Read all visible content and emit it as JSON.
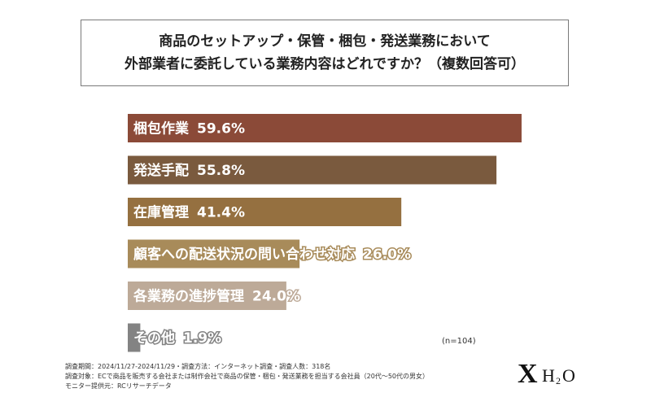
{
  "title": {
    "line1": "商品のセットアップ・保管・梱包・発送業務において",
    "line2": "外部業者に委託している業務内容はどれですか？（複数回答可）"
  },
  "chart_data": {
    "type": "bar",
    "orientation": "horizontal",
    "xlim": [
      0,
      100
    ],
    "categories": [
      "梱包作業",
      "発送手配",
      "在庫管理",
      "顧客への配送状況の問い合わせ対応",
      "各業務の進捗管理",
      "その他"
    ],
    "values": [
      59.6,
      55.8,
      41.4,
      26.0,
      24.0,
      1.9
    ],
    "value_labels": [
      "59.6%",
      "55.8%",
      "41.4%",
      "26.0%",
      "24.0%",
      "1.9%"
    ],
    "colors": [
      "#8b4a38",
      "#7a5a3e",
      "#957040",
      "#a88b5a",
      "#bdaa98",
      "#838383"
    ],
    "grid": false
  },
  "sample_note": "(n=104)",
  "footer": {
    "line1": "調査期間：2024/11/27-2024/11/29・調査方法：インターネット調査・調査人数：318名",
    "line2": "調査対象：ECで商品を販売する会社または制作会社で商品の保管・梱包・発送業務を担当する会社員（20代～50代の男女）",
    "line3": "モニター提供元：RCリサーチデータ"
  },
  "logo": {
    "x_text": "X",
    "h_text": "H",
    "sub_text": "2",
    "o_text": "O"
  }
}
